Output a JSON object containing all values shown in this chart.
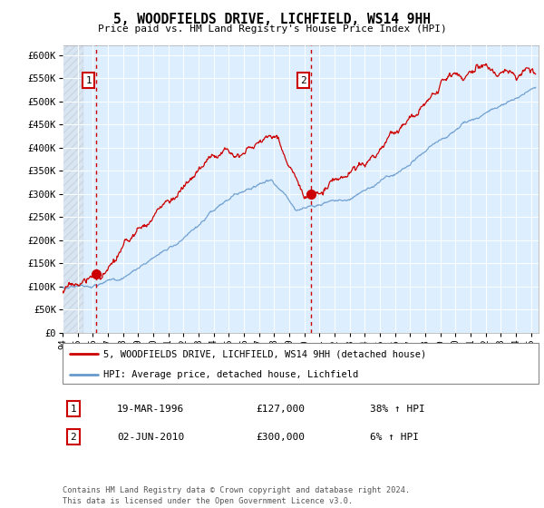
{
  "title": "5, WOODFIELDS DRIVE, LICHFIELD, WS14 9HH",
  "subtitle": "Price paid vs. HM Land Registry's House Price Index (HPI)",
  "xlim_start": 1994.0,
  "xlim_end": 2025.5,
  "ylim_min": 0,
  "ylim_max": 620000,
  "yticks": [
    0,
    50000,
    100000,
    150000,
    200000,
    250000,
    300000,
    350000,
    400000,
    450000,
    500000,
    550000,
    600000
  ],
  "ytick_labels": [
    "£0",
    "£50K",
    "£100K",
    "£150K",
    "£200K",
    "£250K",
    "£300K",
    "£350K",
    "£400K",
    "£450K",
    "£500K",
    "£550K",
    "£600K"
  ],
  "transaction1_x": 1996.22,
  "transaction1_y": 127000,
  "transaction2_x": 2010.42,
  "transaction2_y": 300000,
  "legend_line1": "5, WOODFIELDS DRIVE, LICHFIELD, WS14 9HH (detached house)",
  "legend_line2": "HPI: Average price, detached house, Lichfield",
  "table_row1_num": "1",
  "table_row1_date": "19-MAR-1996",
  "table_row1_price": "£127,000",
  "table_row1_hpi": "38% ↑ HPI",
  "table_row2_num": "2",
  "table_row2_date": "02-JUN-2010",
  "table_row2_price": "£300,000",
  "table_row2_hpi": "6% ↑ HPI",
  "footer": "Contains HM Land Registry data © Crown copyright and database right 2024.\nThis data is licensed under the Open Government Licence v3.0.",
  "red_color": "#cc0000",
  "blue_color": "#6699cc",
  "plot_bg": "#ddeeff",
  "hatch_color": "#bbbbbb"
}
